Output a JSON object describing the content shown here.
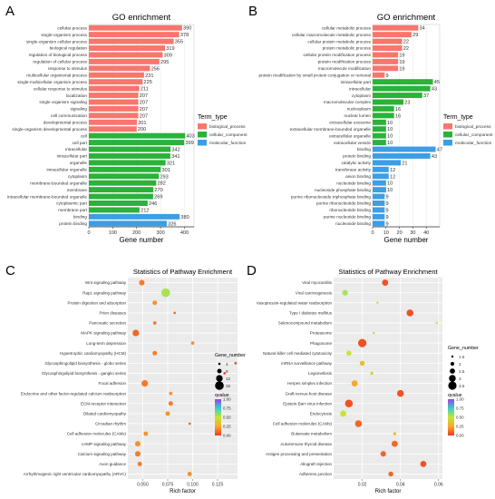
{
  "colors": {
    "biological_process": "#f8766d",
    "cellular_component": "#2ab23a",
    "molecular_function": "#3b9ee6"
  },
  "chart_data": [
    {
      "id": "A",
      "type": "bar",
      "orientation": "horizontal",
      "panel_letter": "A",
      "title": "GO enrichment",
      "xlabel": "Gene number",
      "ylabel": "",
      "xlim": [
        0,
        440
      ],
      "xticks": [
        0,
        100,
        200,
        300,
        400
      ],
      "legend": {
        "title": "Term_type",
        "placement": "right",
        "entries": [
          "biological_process",
          "cellular_component",
          "molecular_function"
        ]
      },
      "categories": [
        "cellular process",
        "single-organism process",
        "single-organism cellular process",
        "biological regulation",
        "regulation of biological process",
        "regulation of cellular process",
        "response to stimulus",
        "multicellular organismal process",
        "single-multicellular organism process",
        "cellular response to stimulus",
        "localization",
        "single organism signaling",
        "signaling",
        "cell communication",
        "developmental process",
        "single-organism developmental process",
        "cell",
        "cell part",
        "intracellular",
        "intracellular part",
        "organelle",
        "intracellular organelle",
        "cytoplasm",
        "membrane-bounded organelle",
        "membrane",
        "intracellular membrane-bounded organelle",
        "cytoplasmic part",
        "membrane part",
        "binding",
        "protein binding"
      ],
      "values": [
        390,
        378,
        355,
        319,
        309,
        295,
        256,
        231,
        225,
        211,
        207,
        207,
        207,
        207,
        201,
        200,
        403,
        399,
        342,
        341,
        321,
        301,
        293,
        282,
        270,
        269,
        246,
        212,
        380,
        326
      ],
      "term_types": [
        "biological_process",
        "biological_process",
        "biological_process",
        "biological_process",
        "biological_process",
        "biological_process",
        "biological_process",
        "biological_process",
        "biological_process",
        "biological_process",
        "biological_process",
        "biological_process",
        "biological_process",
        "biological_process",
        "biological_process",
        "biological_process",
        "cellular_component",
        "cellular_component",
        "cellular_component",
        "cellular_component",
        "cellular_component",
        "cellular_component",
        "cellular_component",
        "cellular_component",
        "cellular_component",
        "cellular_component",
        "cellular_component",
        "cellular_component",
        "molecular_function",
        "molecular_function"
      ]
    },
    {
      "id": "B",
      "type": "bar",
      "orientation": "horizontal",
      "panel_letter": "B",
      "title": "GO enrichment",
      "xlabel": "Gene number",
      "ylabel": "",
      "xlim": [
        0,
        50
      ],
      "xticks": [
        0,
        10,
        20,
        30,
        40
      ],
      "legend": {
        "title": "Term_type",
        "placement": "right",
        "entries": [
          "biological_process",
          "cellular_component",
          "molecular_function"
        ]
      },
      "categories": [
        "cellular metabolic process",
        "cellular macromolecule metabolic process",
        "cellular protein metabolic process",
        "protein metabolic process",
        "cellular protein modification process",
        "protein modification process",
        "macromolecule modification",
        "protein modification by small protein conjugation or removal",
        "intracellular part",
        "intracellular",
        "cytoplasm",
        "macromolecular complex",
        "nucleoplasm",
        "nuclear lumen",
        "extracellular exosome",
        "extracellular membrane-bounded organelle",
        "extracellular organelle",
        "extracellular vesicle",
        "binding",
        "protein binding",
        "catalytic activity",
        "transferase activity",
        "anion binding",
        "nucleotide binding",
        "nucleoside phosphate binding",
        "purine ribonucleoside triphosphate binding",
        "purine ribonucleotide binding",
        "ribonucleotide binding",
        "purine nucleotide binding",
        "nucleoside binding"
      ],
      "values": [
        34,
        29,
        22,
        22,
        19,
        19,
        19,
        9,
        45,
        43,
        37,
        23,
        16,
        16,
        10,
        10,
        10,
        10,
        47,
        43,
        21,
        12,
        12,
        10,
        10,
        9,
        9,
        9,
        9,
        9
      ],
      "term_types": [
        "biological_process",
        "biological_process",
        "biological_process",
        "biological_process",
        "biological_process",
        "biological_process",
        "biological_process",
        "biological_process",
        "cellular_component",
        "cellular_component",
        "cellular_component",
        "cellular_component",
        "cellular_component",
        "cellular_component",
        "cellular_component",
        "cellular_component",
        "cellular_component",
        "cellular_component",
        "molecular_function",
        "molecular_function",
        "molecular_function",
        "molecular_function",
        "molecular_function",
        "molecular_function",
        "molecular_function",
        "molecular_function",
        "molecular_function",
        "molecular_function",
        "molecular_function",
        "molecular_function"
      ]
    },
    {
      "id": "C",
      "type": "scatter",
      "panel_letter": "C",
      "title": "Statistics of Pathway Enrichment",
      "xlabel": "Rich factor",
      "ylabel": "",
      "xlim": [
        0.035,
        0.145
      ],
      "xticks": [
        0.05,
        0.075,
        0.1,
        0.125
      ],
      "xtick_labels": [
        "0.050",
        "0.075",
        "0.100",
        "0.125"
      ],
      "grid": true,
      "size_legend": {
        "title": "Gene_number",
        "values": [
          4,
          8,
          12,
          16
        ]
      },
      "color_legend": {
        "title": "qvalue",
        "ticks": [
          "1.00",
          "0.75",
          "0.50",
          "0.25",
          "0.00"
        ]
      },
      "categories": [
        "Wnt signaling pathway",
        "Rap1 signaling pathway",
        "Protein digestion and absorption",
        "Prion diseases",
        "Pancreatic secretion",
        "MAPK signaling pathway",
        "Long-term depression",
        "Hypertrophic cardiomyopathy (HCM)",
        "Glycosphingolipid biosynthesis - globo series",
        "Glycosphingolipid biosynthesis - ganglio series",
        "Focal adhesion",
        "Endocrine and other factor-regulated calcium reabsorption",
        "ECM-receptor interaction",
        "Dilated cardiomyopathy",
        "Circadian rhythm",
        "Cell adhesion molecules (CAMs)",
        "cAMP signaling pathway",
        "Calcium signaling pathway",
        "Axon guidance",
        "Arrhythmogenic right ventricular cardiomyopathy (ARVC)"
      ],
      "points": [
        {
          "x": 0.049,
          "gene_number": 10,
          "qvalue": 0.15
        },
        {
          "x": 0.073,
          "gene_number": 16,
          "qvalue": 0.55
        },
        {
          "x": 0.062,
          "gene_number": 8,
          "qvalue": 0.2
        },
        {
          "x": 0.082,
          "gene_number": 4,
          "qvalue": 0.1
        },
        {
          "x": 0.062,
          "gene_number": 6,
          "qvalue": 0.15
        },
        {
          "x": 0.043,
          "gene_number": 12,
          "qvalue": 0.1
        },
        {
          "x": 0.1,
          "gene_number": 6,
          "qvalue": 0.2
        },
        {
          "x": 0.062,
          "gene_number": 8,
          "qvalue": 0.15
        },
        {
          "x": 0.143,
          "gene_number": 3,
          "qvalue": 0.0
        },
        {
          "x": 0.132,
          "gene_number": 3,
          "qvalue": 0.0
        },
        {
          "x": 0.052,
          "gene_number": 12,
          "qvalue": 0.15
        },
        {
          "x": 0.078,
          "gene_number": 6,
          "qvalue": 0.2
        },
        {
          "x": 0.078,
          "gene_number": 8,
          "qvalue": 0.15
        },
        {
          "x": 0.075,
          "gene_number": 8,
          "qvalue": 0.2
        },
        {
          "x": 0.097,
          "gene_number": 4,
          "qvalue": 0.1
        },
        {
          "x": 0.053,
          "gene_number": 8,
          "qvalue": 0.2
        },
        {
          "x": 0.045,
          "gene_number": 10,
          "qvalue": 0.2
        },
        {
          "x": 0.045,
          "gene_number": 10,
          "qvalue": 0.15
        },
        {
          "x": 0.047,
          "gene_number": 8,
          "qvalue": 0.15
        },
        {
          "x": 0.097,
          "gene_number": 8,
          "qvalue": 0.2
        }
      ]
    },
    {
      "id": "D",
      "type": "scatter",
      "panel_letter": "D",
      "title": "Statistics of Pathway Enrichment",
      "xlabel": "Rich factor",
      "ylabel": "",
      "xlim": [
        0.005,
        0.062
      ],
      "xticks": [
        0.02,
        0.04,
        0.06
      ],
      "xtick_labels": [
        "0.02",
        "0.04",
        "0.06"
      ],
      "grid": true,
      "size_legend": {
        "title": "Gene_number",
        "values": [
          1.5,
          2.0,
          2.5,
          3.0,
          3.5
        ]
      },
      "color_legend": {
        "title": "qvalue",
        "ticks": [
          "1.00",
          "0.75",
          "0.50",
          "0.25",
          "0.00"
        ]
      },
      "categories": [
        "Viral myocarditis",
        "Viral carcinogenesis",
        "Vasopressin-regulated water reabsorption",
        "Type I diabetes mellitus",
        "Selenocompound metabolism",
        "Proteasome",
        "Phagosome",
        "Natural killer cell mediated cytotoxicity",
        "mRNA surveillance pathway",
        "Legionellosis",
        "Herpes simplex infection",
        "Graft-versus-host disease",
        "Epstein-Barr virus infection",
        "Endocytosis",
        "Cell adhesion molecules (CAMs)",
        "Butanoate metabolism",
        "Autoimmune thyroid disease",
        "Antigen processing and presentation",
        "Allograft rejection",
        "Adherens junction"
      ],
      "points": [
        {
          "x": 0.032,
          "gene_number": 2.8,
          "qvalue": 0.05
        },
        {
          "x": 0.011,
          "gene_number": 2.6,
          "qvalue": 0.55
        },
        {
          "x": 0.028,
          "gene_number": 1.5,
          "qvalue": 0.5
        },
        {
          "x": 0.045,
          "gene_number": 3.0,
          "qvalue": 0.05
        },
        {
          "x": 0.059,
          "gene_number": 1.5,
          "qvalue": 0.45
        },
        {
          "x": 0.026,
          "gene_number": 1.5,
          "qvalue": 0.4
        },
        {
          "x": 0.02,
          "gene_number": 3.5,
          "qvalue": 0.05
        },
        {
          "x": 0.013,
          "gene_number": 2.4,
          "qvalue": 0.5
        },
        {
          "x": 0.02,
          "gene_number": 2.4,
          "qvalue": 0.35
        },
        {
          "x": 0.025,
          "gene_number": 1.8,
          "qvalue": 0.45
        },
        {
          "x": 0.016,
          "gene_number": 2.8,
          "qvalue": 0.25
        },
        {
          "x": 0.04,
          "gene_number": 3.0,
          "qvalue": 0.05
        },
        {
          "x": 0.013,
          "gene_number": 3.3,
          "qvalue": 0.05
        },
        {
          "x": 0.01,
          "gene_number": 2.8,
          "qvalue": 0.5
        },
        {
          "x": 0.018,
          "gene_number": 3.0,
          "qvalue": 0.1
        },
        {
          "x": 0.037,
          "gene_number": 1.8,
          "qvalue": 0.35
        },
        {
          "x": 0.037,
          "gene_number": 2.8,
          "qvalue": 0.1
        },
        {
          "x": 0.031,
          "gene_number": 2.6,
          "qvalue": 0.1
        },
        {
          "x": 0.052,
          "gene_number": 2.8,
          "qvalue": 0.05
        },
        {
          "x": 0.035,
          "gene_number": 2.4,
          "qvalue": 0.1
        }
      ]
    }
  ]
}
